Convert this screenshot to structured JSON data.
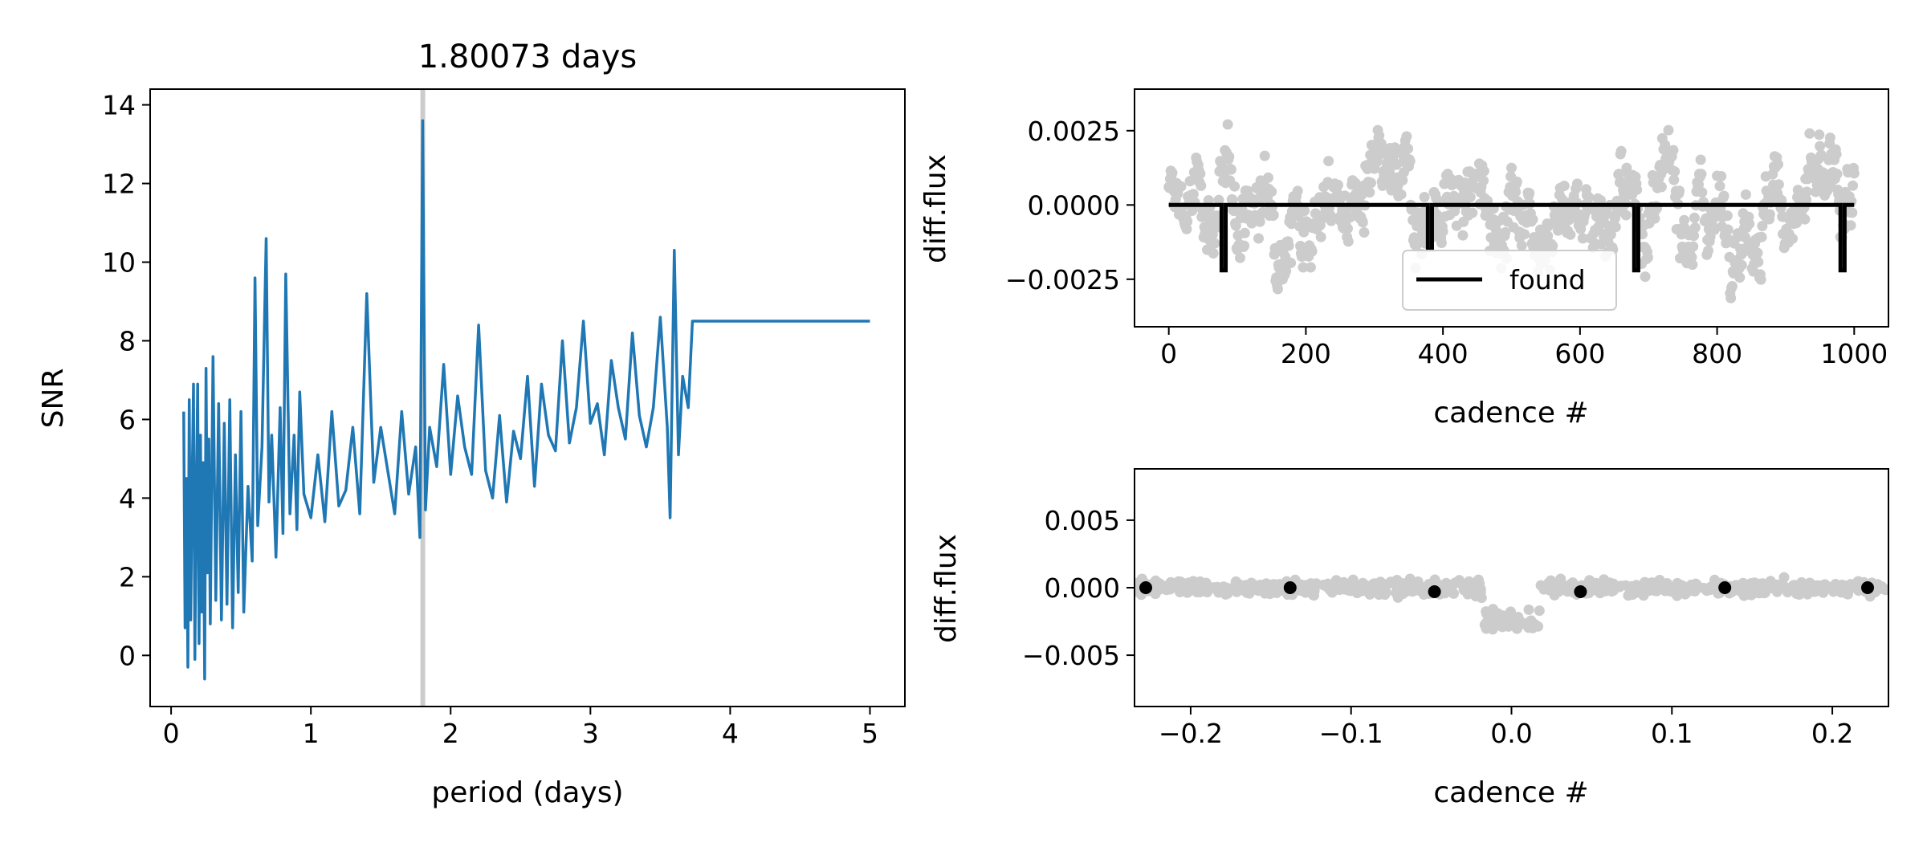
{
  "chart_data": [
    {
      "type": "line",
      "title": "1.80073 days",
      "xlabel": "period (days)",
      "ylabel": "SNR",
      "xlim": [
        -0.15,
        5.25
      ],
      "ylim": [
        -1.3,
        14.4
      ],
      "xticks": [
        0,
        1,
        2,
        3,
        4,
        5
      ],
      "yticks": [
        0,
        2,
        4,
        6,
        8,
        10,
        12,
        14
      ],
      "grid": false,
      "colors": {
        "line": "#1f77b4",
        "marker_line": "#cccccc"
      },
      "best_period_marker": 1.80073,
      "series": [
        {
          "x": [
            0.09,
            0.1,
            0.11,
            0.12,
            0.13,
            0.14,
            0.15,
            0.16,
            0.17,
            0.18,
            0.19,
            0.2,
            0.21,
            0.22,
            0.23,
            0.24,
            0.25,
            0.26,
            0.27,
            0.28,
            0.3,
            0.32,
            0.34,
            0.36,
            0.38,
            0.4,
            0.42,
            0.44,
            0.46,
            0.48,
            0.5,
            0.52,
            0.55,
            0.58,
            0.6,
            0.62,
            0.65,
            0.68,
            0.7,
            0.72,
            0.75,
            0.78,
            0.8,
            0.82,
            0.85,
            0.88,
            0.9,
            0.92,
            0.95,
            1.0,
            1.05,
            1.1,
            1.15,
            1.2,
            1.25,
            1.3,
            1.35,
            1.4,
            1.45,
            1.5,
            1.55,
            1.6,
            1.65,
            1.7,
            1.75,
            1.78,
            1.8,
            1.82,
            1.85,
            1.9,
            1.95,
            2.0,
            2.05,
            2.1,
            2.15,
            2.2,
            2.25,
            2.3,
            2.35,
            2.4,
            2.45,
            2.5,
            2.55,
            2.6,
            2.65,
            2.7,
            2.75,
            2.8,
            2.85,
            2.9,
            2.95,
            3.0,
            3.05,
            3.1,
            3.15,
            3.2,
            3.25,
            3.3,
            3.35,
            3.4,
            3.45,
            3.5,
            3.55,
            3.57,
            3.6,
            3.63,
            3.66,
            3.7,
            3.73,
            4.0,
            4.5,
            5.0
          ],
          "y": [
            6.2,
            0.7,
            4.5,
            -0.3,
            6.5,
            0.9,
            4.2,
            6.9,
            -0.1,
            3.8,
            6.9,
            0.3,
            5.6,
            1.1,
            4.9,
            -0.6,
            7.3,
            2.1,
            5.5,
            0.8,
            7.6,
            1.4,
            6.4,
            0.9,
            5.9,
            1.3,
            6.5,
            0.7,
            5.1,
            1.6,
            6.2,
            1.1,
            4.3,
            2.4,
            9.6,
            3.3,
            5.3,
            10.6,
            3.9,
            5.6,
            2.5,
            6.3,
            3.1,
            9.7,
            3.6,
            5.6,
            3.2,
            6.7,
            4.1,
            3.5,
            5.1,
            3.4,
            6.2,
            3.8,
            4.2,
            5.8,
            3.6,
            9.2,
            4.4,
            5.8,
            4.7,
            3.6,
            6.2,
            4.1,
            5.3,
            3.0,
            13.6,
            3.7,
            5.8,
            4.8,
            7.4,
            4.6,
            6.6,
            5.3,
            4.6,
            8.4,
            4.7,
            4.0,
            6.1,
            3.9,
            5.7,
            5.0,
            7.1,
            4.3,
            6.9,
            5.6,
            5.2,
            8.0,
            5.4,
            6.3,
            8.5,
            5.9,
            6.4,
            5.1,
            7.5,
            6.3,
            5.5,
            8.2,
            6.1,
            5.3,
            6.3,
            8.6,
            5.8,
            3.5,
            10.3,
            5.1,
            7.1,
            6.3,
            8.5,
            8.5,
            8.5,
            8.5
          ]
        }
      ]
    },
    {
      "type": "scatter",
      "xlabel": "cadence #",
      "ylabel": "diff.flux",
      "xlim": [
        -50,
        1050
      ],
      "ylim": [
        -0.0041,
        0.0039
      ],
      "xticks": [
        0,
        200,
        400,
        600,
        800,
        1000
      ],
      "yticks": [
        0.0025,
        0.0,
        -0.0025
      ],
      "ytick_labels": [
        "0.0025",
        "0.0000",
        "−0.0025"
      ],
      "grid": false,
      "legend": {
        "placement": "lower center",
        "entries": [
          "found"
        ]
      },
      "colors": {
        "points": "#cccccc",
        "model": "#000000"
      },
      "series": [
        {
          "name": "found",
          "type": "step",
          "baseline": 0.0,
          "transits": [
            80,
            381,
            682,
            983
          ],
          "depths": [
            -0.0022,
            -0.0015,
            -0.0022,
            -0.0022
          ]
        }
      ]
    },
    {
      "type": "scatter",
      "xlabel": "cadence #",
      "ylabel": "diff.flux",
      "xlim": [
        -0.235,
        0.235
      ],
      "ylim": [
        -0.0088,
        0.0088
      ],
      "xticks": [
        -0.2,
        -0.1,
        0.0,
        0.1,
        0.2
      ],
      "xtick_labels": [
        "−0.2",
        "−0.1",
        "0.0",
        "0.1",
        "0.2"
      ],
      "yticks": [
        0.005,
        0.0,
        -0.005
      ],
      "ytick_labels": [
        "0.005",
        "0.000",
        "−0.005"
      ],
      "grid": false,
      "colors": {
        "points": "#cccccc",
        "binned": "#000000"
      },
      "series": [
        {
          "type": "binned",
          "x": [
            -0.228,
            -0.138,
            -0.048,
            0.043,
            0.133,
            0.222
          ],
          "y": [
            0.0,
            0.0,
            -0.0003,
            -0.0003,
            0.0,
            0.0
          ]
        }
      ]
    }
  ]
}
